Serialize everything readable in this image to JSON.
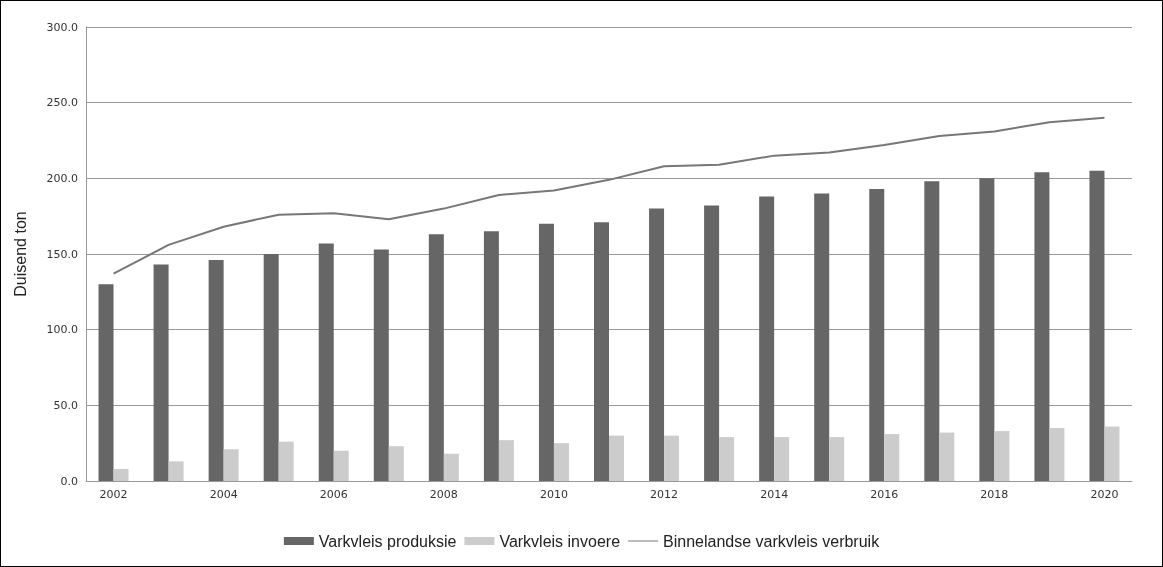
{
  "chart_data": {
    "type": "bar",
    "ylabel": "Duisend ton",
    "categories": [
      "2002",
      null,
      "2004",
      null,
      "2006",
      null,
      "2008",
      null,
      "2010",
      null,
      "2012",
      null,
      "2014",
      null,
      "2016",
      null,
      "2018",
      null,
      "2020"
    ],
    "series": [
      {
        "name": "Varkvleis produksie",
        "color": "#666666",
        "values": [
          130,
          143,
          146,
          150,
          157,
          153,
          163,
          165,
          170,
          171,
          180,
          182,
          188,
          190,
          193,
          198,
          200,
          204,
          205
        ]
      },
      {
        "name": "Varkvleis invoere",
        "color": "#cccccc",
        "values": [
          8,
          13,
          21,
          26,
          20,
          23,
          18,
          27,
          25,
          30,
          30,
          29,
          29,
          29,
          31,
          32,
          33,
          35,
          36
        ]
      },
      {
        "name": "Binnelandse varkvleis verbruik",
        "type": "line",
        "color": "#777777",
        "values": [
          137,
          156,
          168,
          176,
          177,
          173,
          180,
          189,
          192,
          199,
          208,
          209,
          215,
          217,
          222,
          228,
          231,
          237,
          240
        ]
      }
    ],
    "ylim": [
      0,
      300
    ],
    "yticks": [
      {
        "value": 0,
        "label": "0.0"
      },
      {
        "value": 50,
        "label": "50.0"
      },
      {
        "value": 100,
        "label": "100.0"
      },
      {
        "value": 150,
        "label": "150.0"
      },
      {
        "value": 200,
        "label": "200.0"
      },
      {
        "value": 250,
        "label": "250.0"
      },
      {
        "value": 300,
        "label": "300.0"
      }
    ],
    "grid": "y",
    "legend": "bottom",
    "marker": "none",
    "line_style": "solid"
  }
}
